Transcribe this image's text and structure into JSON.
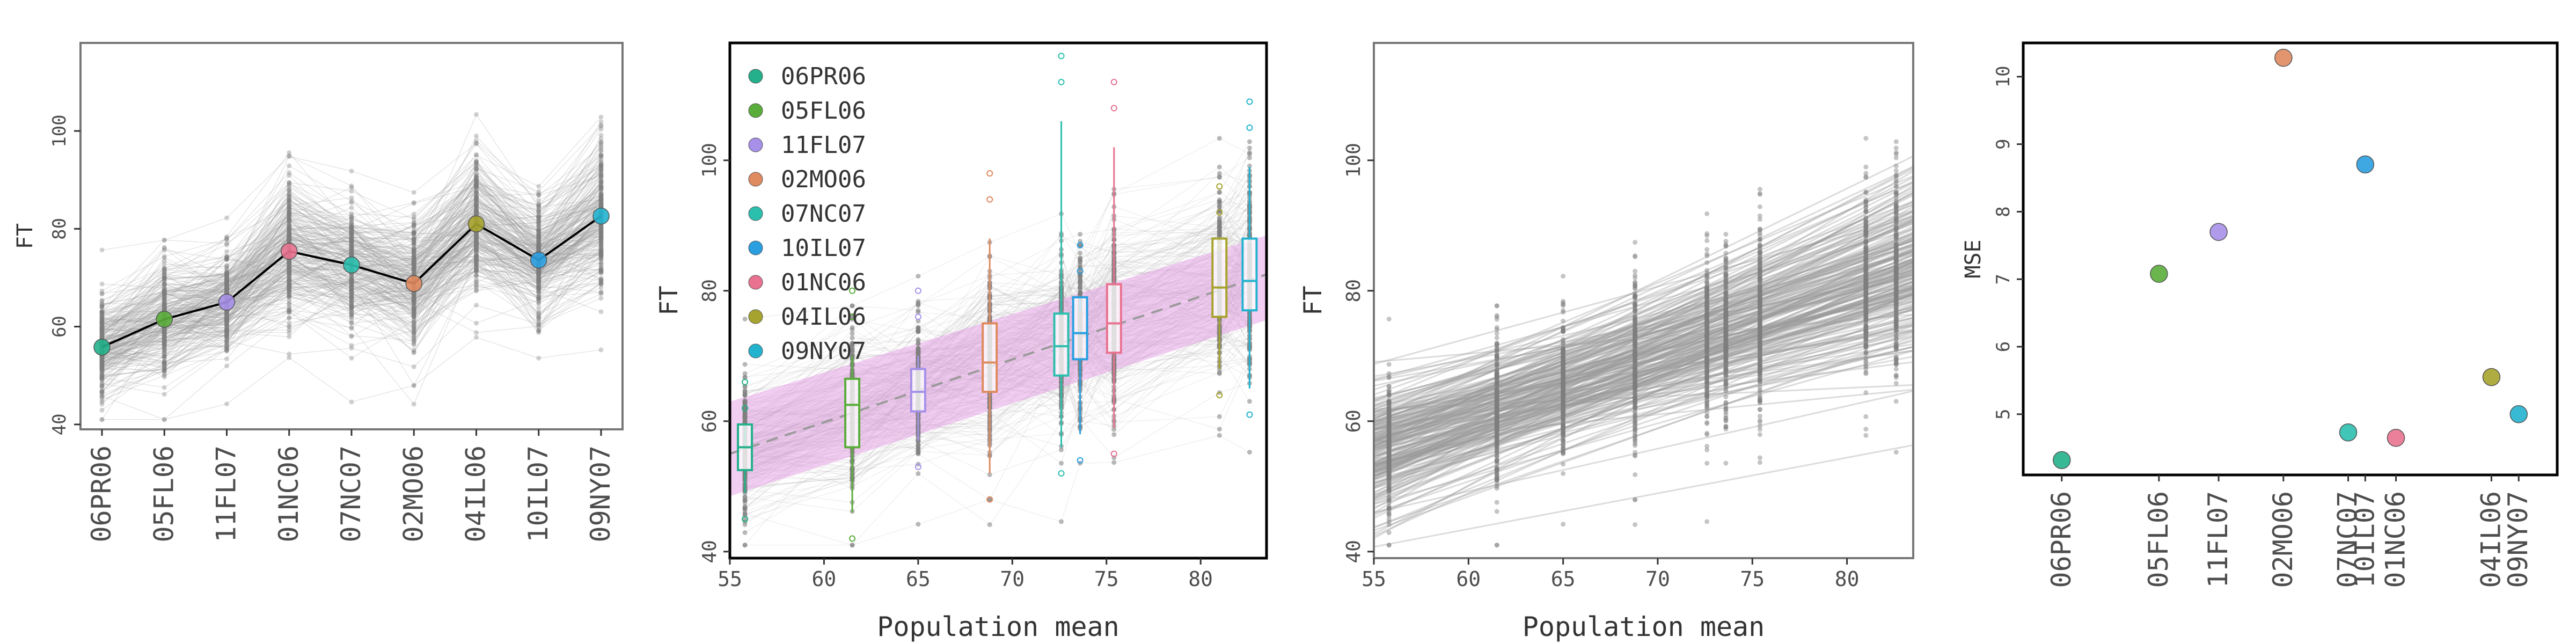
{
  "populations": [
    "06PR06",
    "05FL06",
    "11FL07",
    "01NC06",
    "07NC07",
    "02MO06",
    "04IL06",
    "10IL07",
    "09NY07"
  ],
  "colors": {
    "06PR06": "#23b08a",
    "05FL06": "#5aad3a",
    "11FL07": "#a690e8",
    "01NC06": "#e8728f",
    "07NC07": "#2bbfae",
    "02MO06": "#df8a5f",
    "04IL06": "#a6a32e",
    "10IL07": "#2a9fe0",
    "09NY07": "#23b3cf",
    "gray_lines": "#9a9a9a",
    "gray_points": "#7f7f7f",
    "ribbon": "#e9a6ea",
    "frame_gray": "#777777",
    "frame_black": "#000000"
  },
  "population_means": {
    "06PR06": 55.8,
    "05FL06": 61.5,
    "11FL07": 65.0,
    "01NC06": 75.4,
    "07NC07": 72.6,
    "02MO06": 68.8,
    "04IL06": 81.0,
    "10IL07": 73.6,
    "09NY07": 82.6
  },
  "chart_data": [
    {
      "type": "line",
      "id": "panel-a",
      "categories": [
        "06PR06",
        "05FL06",
        "11FL07",
        "01NC06",
        "07NC07",
        "02MO06",
        "04IL06",
        "10IL07",
        "09NY07"
      ],
      "series": [
        {
          "values": [
            55.8,
            61.5,
            65.0,
            75.4,
            72.6,
            68.8,
            81.0,
            73.6,
            82.6
          ]
        }
      ],
      "n_genotype_lines": 260,
      "ylabel": "FT",
      "xlabel": "",
      "ylim": [
        39,
        118
      ],
      "yticks": [
        40,
        60,
        80,
        100
      ],
      "grid": false
    },
    {
      "type": "scatter",
      "id": "panel-b",
      "xlabel": "Population mean",
      "ylabel": "FT",
      "xlim": [
        55,
        83.5
      ],
      "ylim": [
        39,
        118
      ],
      "xticks": [
        55,
        60,
        65,
        70,
        75,
        80
      ],
      "yticks": [
        40,
        60,
        80,
        100
      ],
      "legend": {
        "placement": "top-left",
        "entries": [
          "06PR06",
          "05FL06",
          "11FL07",
          "02MO06",
          "07NC07",
          "10IL07",
          "01NC06",
          "04IL06",
          "09NY07"
        ]
      },
      "boxes": [
        {
          "pop": "06PR06",
          "x": 55.8,
          "q1": 52.5,
          "median": 56.0,
          "q3": 59.5,
          "lo": 45,
          "hi": 66
        },
        {
          "pop": "05FL06",
          "x": 61.5,
          "q1": 56.0,
          "median": 62.5,
          "q3": 66.5,
          "lo": 42,
          "hi": 80
        },
        {
          "pop": "11FL07",
          "x": 65.0,
          "q1": 61.5,
          "median": 64.5,
          "q3": 68.0,
          "lo": 53,
          "hi": 80
        },
        {
          "pop": "02MO06",
          "x": 68.8,
          "q1": 64.5,
          "median": 69.0,
          "q3": 75.0,
          "lo": 48,
          "hi": 98
        },
        {
          "pop": "07NC07",
          "x": 72.6,
          "q1": 67.0,
          "median": 71.5,
          "q3": 76.5,
          "lo": 52,
          "hi": 116
        },
        {
          "pop": "10IL07",
          "x": 73.6,
          "q1": 69.5,
          "median": 73.5,
          "q3": 79.0,
          "lo": 54,
          "hi": 87
        },
        {
          "pop": "01NC06",
          "x": 75.4,
          "q1": 70.5,
          "median": 75.0,
          "q3": 81.0,
          "lo": 55,
          "hi": 112
        },
        {
          "pop": "04IL06",
          "x": 81.0,
          "q1": 76.0,
          "median": 80.5,
          "q3": 88.0,
          "lo": 64,
          "hi": 96
        },
        {
          "pop": "09NY07",
          "x": 82.6,
          "q1": 77.0,
          "median": 81.5,
          "q3": 88.0,
          "lo": 61,
          "hi": 109
        }
      ],
      "ribbon": {
        "x": [
          55.0,
          83.5
        ],
        "lower": [
          48.5,
          75.5
        ],
        "upper": [
          63.0,
          88.5
        ]
      },
      "trend_line": {
        "x": [
          55.0,
          83.5
        ],
        "y": [
          55.0,
          82.5
        ]
      }
    },
    {
      "type": "line",
      "id": "panel-c",
      "xlabel": "Population mean",
      "ylabel": "FT",
      "xlim": [
        55,
        83.5
      ],
      "ylim": [
        39,
        118
      ],
      "xticks": [
        55,
        60,
        65,
        70,
        75,
        80
      ],
      "yticks": [
        40,
        60,
        80,
        100
      ],
      "n_regression_lines": 220,
      "grid": false
    },
    {
      "type": "scatter",
      "id": "panel-d",
      "ylabel": "MSE",
      "xlabel": "",
      "ylim": [
        4.1,
        10.5
      ],
      "yticks": [
        5,
        6,
        7,
        8,
        9,
        10
      ],
      "points": [
        {
          "pop": "06PR06",
          "x": 55.8,
          "y": 4.32
        },
        {
          "pop": "05FL06",
          "x": 61.5,
          "y": 7.08
        },
        {
          "pop": "11FL07",
          "x": 65.0,
          "y": 7.7
        },
        {
          "pop": "02MO06",
          "x": 68.8,
          "y": 10.28
        },
        {
          "pop": "07NC07",
          "x": 72.6,
          "y": 4.73
        },
        {
          "pop": "10IL07",
          "x": 73.6,
          "y": 8.7
        },
        {
          "pop": "01NC06",
          "x": 75.4,
          "y": 4.65
        },
        {
          "pop": "04IL06",
          "x": 81.0,
          "y": 5.55
        },
        {
          "pop": "09NY07",
          "x": 82.6,
          "y": 5.0
        }
      ],
      "xtick_labels": [
        "06PR06",
        "05FL06",
        "11FL07",
        "02MO06",
        "07NC07",
        "10IL07",
        "01NC06",
        "04IL06",
        "09NY07"
      ]
    }
  ]
}
